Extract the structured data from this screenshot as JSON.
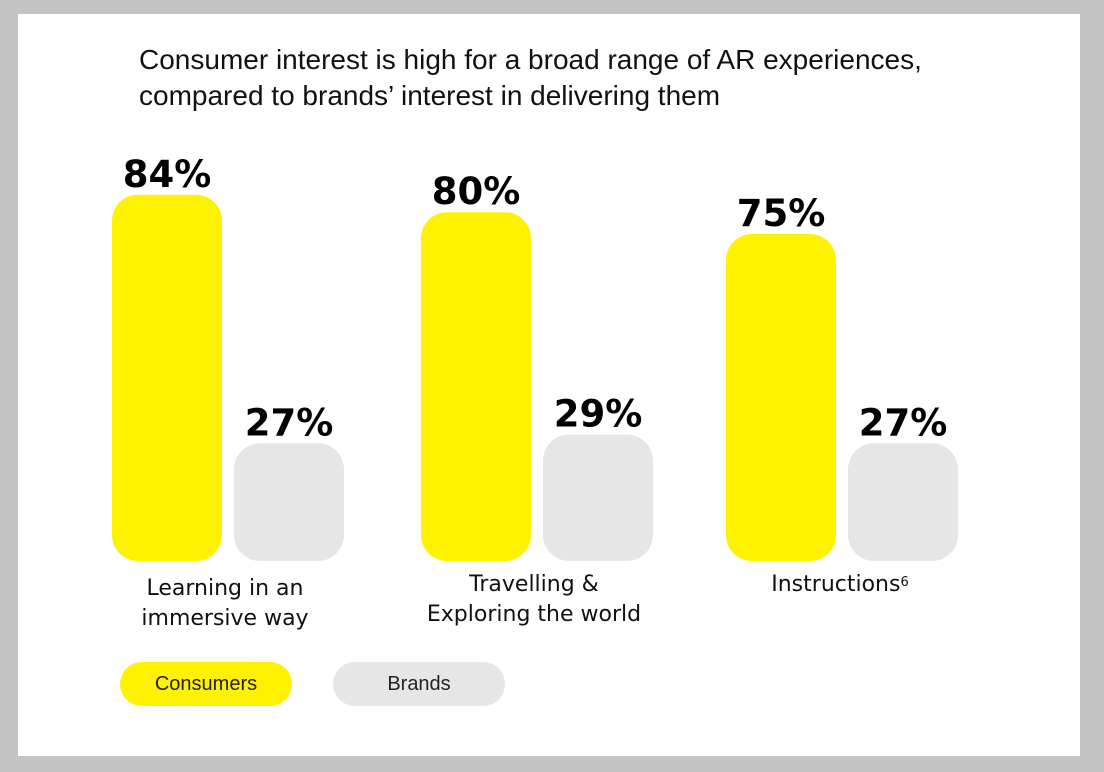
{
  "chart_data": {
    "type": "bar",
    "title": "Consumer interest is high for a broad range of AR experiences,",
    "subtitle": "compared to brands’ interest in delivering them",
    "categories": [
      "Learning in an immersive way",
      "Travelling & Exploring the world",
      "Instructions"
    ],
    "category_superscripts": [
      "",
      "",
      "6"
    ],
    "series": [
      {
        "name": "Consumers",
        "values": [
          84,
          80,
          75
        ],
        "labels": [
          "84%",
          "80%",
          "75%"
        ],
        "color": "#fff200"
      },
      {
        "name": "Brands",
        "values": [
          27,
          29,
          27
        ],
        "labels": [
          "27%",
          "29%",
          "27%"
        ],
        "color": "#e6e6e6"
      }
    ],
    "ylim": [
      0,
      100
    ],
    "grid": false,
    "legend_position": "bottom-left"
  }
}
